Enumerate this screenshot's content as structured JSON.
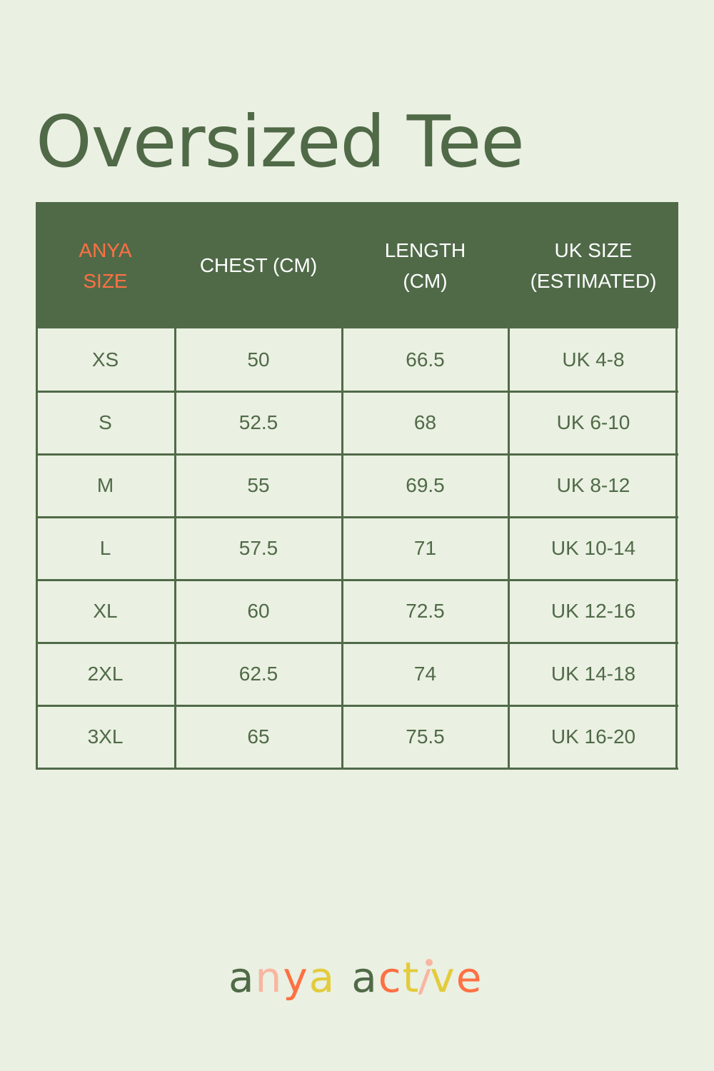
{
  "title": "Oversized Tee",
  "colors": {
    "background": "#eaf0e2",
    "primary_green": "#506a48",
    "accent_orange": "#ff7043",
    "pink": "#f9b5a0",
    "yellow": "#e3cb3b"
  },
  "table": {
    "headers": [
      {
        "line1": "ANYA",
        "line2": "SIZE"
      },
      {
        "line1": "CHEST (CM)",
        "line2": ""
      },
      {
        "line1": "LENGTH",
        "line2": "(CM)"
      },
      {
        "line1": "UK SIZE",
        "line2": "(ESTIMATED)"
      }
    ],
    "rows": [
      [
        "XS",
        "50",
        "66.5",
        "UK 4-8"
      ],
      [
        "S",
        "52.5",
        "68",
        "UK 6-10"
      ],
      [
        "M",
        "55",
        "69.5",
        "UK 8-12"
      ],
      [
        "L",
        "57.5",
        "71",
        "UK 10-14"
      ],
      [
        "XL",
        "60",
        "72.5",
        "UK 12-16"
      ],
      [
        "2XL",
        "62.5",
        "74",
        "UK 14-18"
      ],
      [
        "3XL",
        "65",
        "75.5",
        "UK 16-20"
      ]
    ]
  },
  "logo": {
    "text": "anya active",
    "letters": [
      {
        "ch": "a",
        "color": "#506a48"
      },
      {
        "ch": "n",
        "color": "#f9b5a0"
      },
      {
        "ch": "y",
        "color": "#ff7043"
      },
      {
        "ch": "a",
        "color": "#e3cb3b"
      },
      {
        "ch": " ",
        "color": ""
      },
      {
        "ch": "a",
        "color": "#506a48"
      },
      {
        "ch": "c",
        "color": "#ff7043"
      },
      {
        "ch": "t",
        "color": "#e3cb3b"
      },
      {
        "ch": "i",
        "color": "#f9b5a0"
      },
      {
        "ch": "v",
        "color": "#e3cb3b"
      },
      {
        "ch": "e",
        "color": "#ff7043"
      }
    ]
  }
}
